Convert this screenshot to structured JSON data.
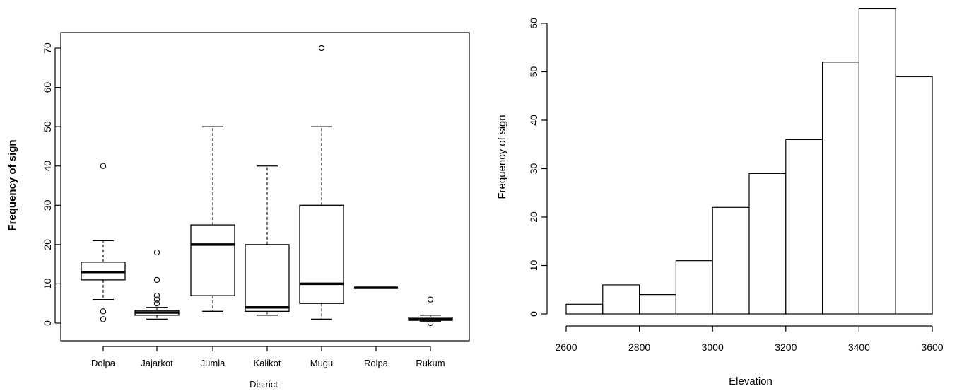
{
  "chart_data": [
    {
      "type": "box",
      "xlabel": "District",
      "ylabel": "Frequency of sign",
      "ylim": [
        0,
        70
      ],
      "yticks": [
        0,
        10,
        20,
        30,
        40,
        50,
        60,
        70
      ],
      "grid": false,
      "categories": [
        "Dolpa",
        "Jajarkot",
        "Jumla",
        "Kalikot",
        "Mugu",
        "Rolpa",
        "Rukum"
      ],
      "boxes": [
        {
          "category": "Dolpa",
          "whisker_low": 6,
          "q1": 11,
          "median": 13,
          "q3": 15.5,
          "whisker_high": 21,
          "outliers": [
            40,
            3,
            1
          ]
        },
        {
          "category": "Jajarkot",
          "whisker_low": 1,
          "q1": 2,
          "median": 2.7,
          "q3": 3.2,
          "whisker_high": 4,
          "outliers": [
            18,
            11,
            7,
            6,
            5
          ]
        },
        {
          "category": "Jumla",
          "whisker_low": 3,
          "q1": 7,
          "median": 20,
          "q3": 25,
          "whisker_high": 50,
          "outliers": []
        },
        {
          "category": "Kalikot",
          "whisker_low": 2,
          "q1": 3,
          "median": 4,
          "q3": 20,
          "whisker_high": 40,
          "outliers": []
        },
        {
          "category": "Mugu",
          "whisker_low": 1,
          "q1": 5,
          "median": 10,
          "q3": 30,
          "whisker_high": 50,
          "outliers": [
            70
          ]
        },
        {
          "category": "Rolpa",
          "whisker_low": 9,
          "q1": 9,
          "median": 9,
          "q3": 9,
          "whisker_high": 9,
          "outliers": []
        },
        {
          "category": "Rukum",
          "whisker_low": 0.5,
          "q1": 0.7,
          "median": 1,
          "q3": 1.5,
          "whisker_high": 2,
          "outliers": [
            6,
            0
          ]
        }
      ]
    },
    {
      "type": "histogram",
      "xlabel": "Elevation",
      "ylabel": "Frequency of sign",
      "xlim": [
        2600,
        3600
      ],
      "ylim": [
        0,
        63
      ],
      "xticks": [
        2600,
        2800,
        3000,
        3200,
        3400,
        3600
      ],
      "yticks": [
        0,
        10,
        20,
        30,
        40,
        50,
        60
      ],
      "grid": false,
      "bins": [
        {
          "start": 2600,
          "end": 2700,
          "count": 2
        },
        {
          "start": 2700,
          "end": 2800,
          "count": 6
        },
        {
          "start": 2800,
          "end": 2900,
          "count": 4
        },
        {
          "start": 2900,
          "end": 3000,
          "count": 11
        },
        {
          "start": 3000,
          "end": 3100,
          "count": 22
        },
        {
          "start": 3100,
          "end": 3200,
          "count": 29
        },
        {
          "start": 3200,
          "end": 3300,
          "count": 36
        },
        {
          "start": 3300,
          "end": 3400,
          "count": 52
        },
        {
          "start": 3400,
          "end": 3500,
          "count": 63
        },
        {
          "start": 3500,
          "end": 3600,
          "count": 49
        }
      ]
    }
  ]
}
